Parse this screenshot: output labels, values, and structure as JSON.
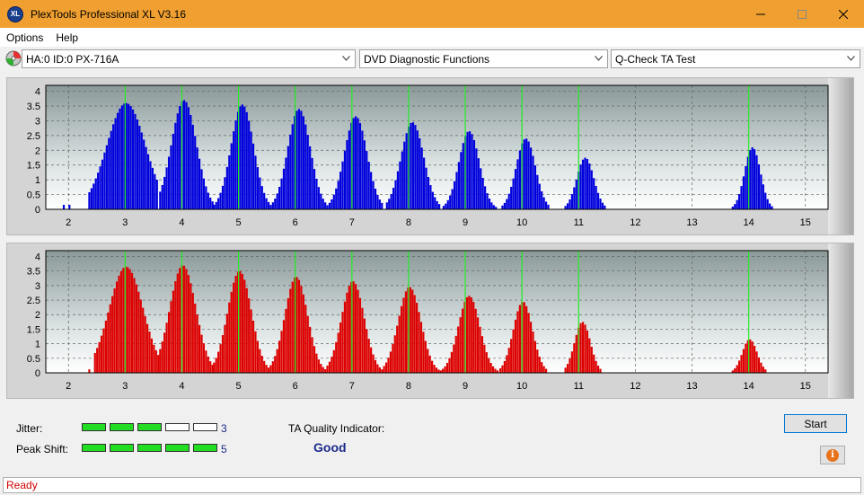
{
  "window": {
    "title": "PlexTools Professional XL V3.16",
    "icon_text": "XL",
    "accent": "#f0a030"
  },
  "menu": {
    "items": [
      "Options",
      "Help"
    ]
  },
  "toolbar": {
    "drive": "HA:0 ID:0  PX-716A",
    "function": "DVD Diagnostic Functions",
    "test": "Q-Check TA Test"
  },
  "chart_data": [
    {
      "type": "bar",
      "name": "upper",
      "color": "#0000dd",
      "xlim": [
        1.6,
        15.4
      ],
      "ylim": [
        0,
        4.2
      ],
      "x_ticks": [
        "2",
        "3",
        "4",
        "5",
        "6",
        "7",
        "8",
        "9",
        "10",
        "11",
        "12",
        "13",
        "14",
        "15"
      ],
      "y_ticks": [
        "0",
        "0.5",
        "1",
        "1.5",
        "2",
        "2.5",
        "3",
        "3.5",
        "4"
      ],
      "green_lines": [
        3,
        4,
        5,
        6,
        7,
        8,
        9,
        10,
        11,
        14
      ],
      "peaks": [
        {
          "center": 3.0,
          "height": 3.6,
          "width": 0.34,
          "start": 2.35,
          "end": 3.55
        },
        {
          "center": 4.02,
          "height": 3.7,
          "width": 0.22,
          "start": 3.6,
          "end": 4.55
        },
        {
          "center": 5.05,
          "height": 3.55,
          "width": 0.2,
          "start": 4.55,
          "end": 5.55
        },
        {
          "center": 6.05,
          "height": 3.4,
          "width": 0.2,
          "start": 5.55,
          "end": 6.55
        },
        {
          "center": 7.05,
          "height": 3.15,
          "width": 0.2,
          "start": 6.55,
          "end": 7.55
        },
        {
          "center": 8.05,
          "height": 2.95,
          "width": 0.2,
          "start": 7.6,
          "end": 8.55
        },
        {
          "center": 9.05,
          "height": 2.65,
          "width": 0.18,
          "start": 8.6,
          "end": 9.55
        },
        {
          "center": 10.05,
          "height": 2.4,
          "width": 0.17,
          "start": 9.6,
          "end": 10.45
        },
        {
          "center": 11.1,
          "height": 1.75,
          "width": 0.15,
          "start": 10.75,
          "end": 11.45
        },
        {
          "center": 14.05,
          "height": 2.1,
          "width": 0.14,
          "start": 13.7,
          "end": 14.5
        }
      ],
      "low_bars": [
        {
          "x": 1.9,
          "h": 0.15
        },
        {
          "x": 2.0,
          "h": 0.15
        }
      ]
    },
    {
      "type": "bar",
      "name": "lower",
      "color": "#dd0000",
      "xlim": [
        1.6,
        15.4
      ],
      "ylim": [
        0,
        4.2
      ],
      "x_ticks": [
        "2",
        "3",
        "4",
        "5",
        "6",
        "7",
        "8",
        "9",
        "10",
        "11",
        "12",
        "13",
        "14",
        "15"
      ],
      "y_ticks": [
        "0",
        "0.5",
        "1",
        "1.5",
        "2",
        "2.5",
        "3",
        "3.5",
        "4"
      ],
      "green_lines": [
        3,
        4,
        5,
        6,
        7,
        8,
        9,
        10,
        11,
        14
      ],
      "peaks": [
        {
          "center": 3.0,
          "height": 3.65,
          "width": 0.3,
          "start": 2.45,
          "end": 3.6
        },
        {
          "center": 4.0,
          "height": 3.7,
          "width": 0.23,
          "start": 3.6,
          "end": 4.55
        },
        {
          "center": 5.0,
          "height": 3.5,
          "width": 0.21,
          "start": 4.55,
          "end": 5.55
        },
        {
          "center": 6.0,
          "height": 3.3,
          "width": 0.2,
          "start": 5.55,
          "end": 6.55
        },
        {
          "center": 7.0,
          "height": 3.15,
          "width": 0.2,
          "start": 6.55,
          "end": 7.55
        },
        {
          "center": 8.0,
          "height": 2.95,
          "width": 0.2,
          "start": 7.55,
          "end": 8.55
        },
        {
          "center": 9.05,
          "height": 2.65,
          "width": 0.19,
          "start": 8.55,
          "end": 9.6
        },
        {
          "center": 10.0,
          "height": 2.45,
          "width": 0.17,
          "start": 9.6,
          "end": 10.6
        },
        {
          "center": 11.05,
          "height": 1.75,
          "width": 0.14,
          "start": 10.75,
          "end": 11.5
        },
        {
          "center": 14.0,
          "height": 1.15,
          "width": 0.13,
          "start": 13.7,
          "end": 14.3
        }
      ],
      "low_bars": [
        {
          "x": 2.35,
          "h": 0.12
        }
      ]
    }
  ],
  "metrics": {
    "jitter_label": "Jitter:",
    "jitter_value": "3",
    "jitter_level": 3,
    "peak_label": "Peak Shift:",
    "peak_value": "5",
    "peak_level": 5,
    "meter_segments": 5,
    "ta_label": "TA Quality Indicator:",
    "ta_value": "Good"
  },
  "buttons": {
    "start": "Start"
  },
  "status": {
    "text": "Ready"
  }
}
